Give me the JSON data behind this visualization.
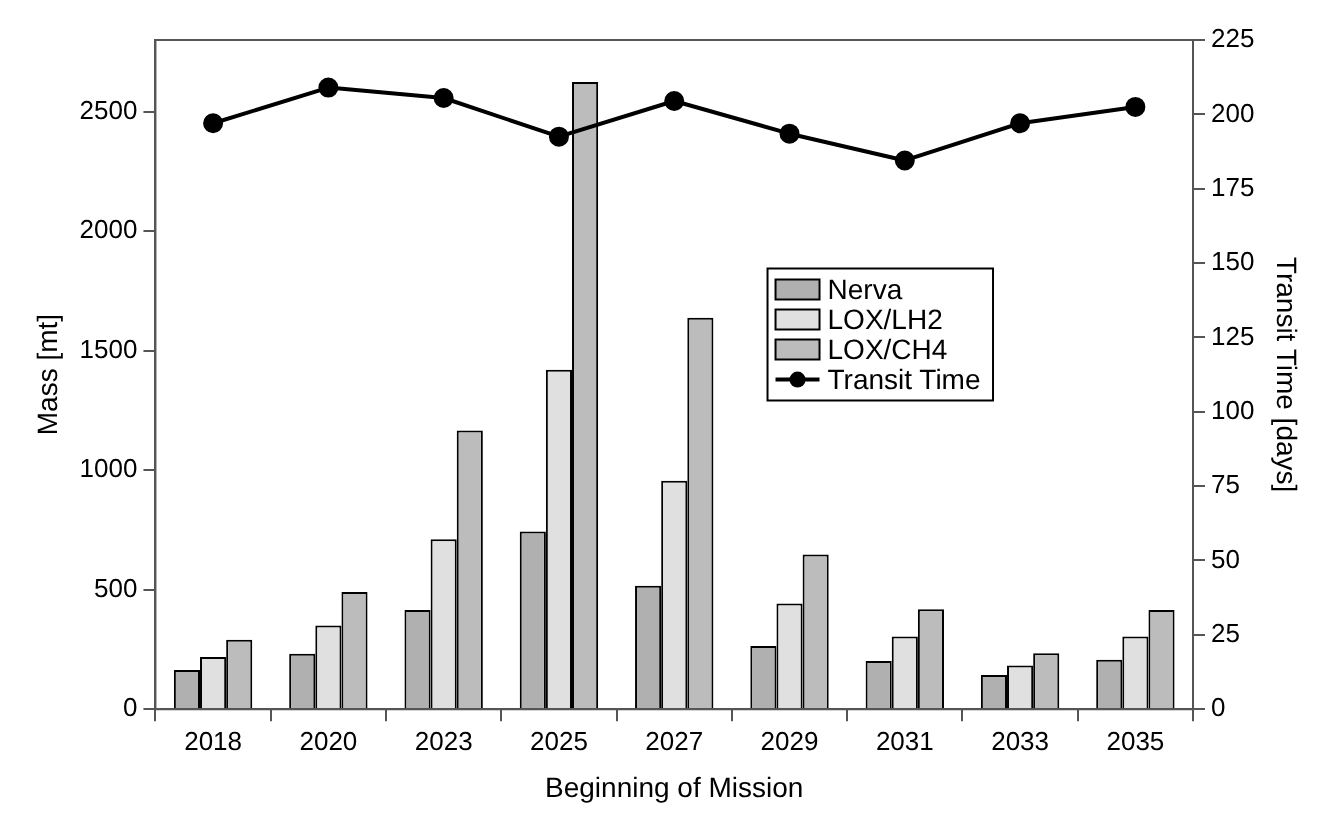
{
  "chart_data": {
    "type": "bar",
    "xlabel": "Beginning of Mission",
    "ylabel": "Mass [mt]",
    "y2label": "Transit Time [days]",
    "categories": [
      "2018",
      "2020",
      "2023",
      "2025",
      "2027",
      "2029",
      "2031",
      "2033",
      "2035"
    ],
    "series": [
      {
        "name": "Nerva",
        "color": "#b0b0b0",
        "values": [
          164,
          232,
          415,
          744,
          517,
          264,
          202,
          143,
          207
        ]
      },
      {
        "name": "LOX/LH2",
        "color": "#e0e0e0",
        "values": [
          218,
          350,
          711,
          1420,
          956,
          442,
          304,
          183,
          304
        ]
      },
      {
        "name": "LOX/CH4",
        "color": "#bcbcbc",
        "values": [
          291,
          490,
          1166,
          2624,
          1638,
          647,
          418,
          234,
          415
        ]
      },
      {
        "name": "Transit Time",
        "type": "line",
        "axis": "y2",
        "color": "#000000",
        "marker": "circle",
        "line_style": "solid",
        "values": [
          197,
          209,
          205.5,
          192.5,
          204.5,
          193.5,
          184.5,
          197,
          202.5
        ]
      }
    ],
    "ylim": [
      0,
      2800
    ],
    "yticks": [
      0,
      500,
      1000,
      1500,
      2000,
      2500
    ],
    "y2lim": [
      0,
      225
    ],
    "y2ticks": [
      0,
      25,
      50,
      75,
      100,
      125,
      150,
      175,
      200,
      225
    ],
    "grid": false,
    "legend": "right"
  }
}
